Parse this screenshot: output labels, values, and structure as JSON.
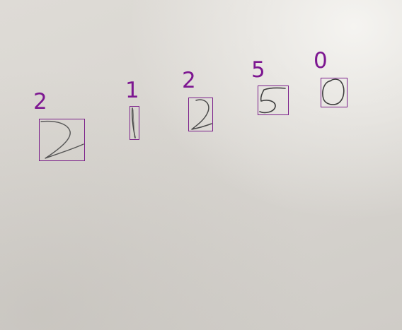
{
  "detections": [
    {
      "label": "2"
    },
    {
      "label": "1"
    },
    {
      "label": "2"
    },
    {
      "label": "5"
    },
    {
      "label": "0"
    }
  ],
  "colors": {
    "paper": "#d9d6d1",
    "box_outline": "#7b1f8a",
    "label_text": "#7d1791",
    "pencil": "#4a4a4a"
  }
}
